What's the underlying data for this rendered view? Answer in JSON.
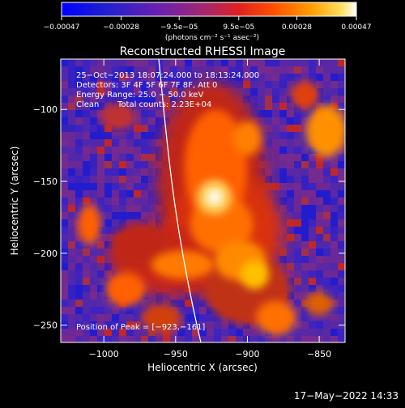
{
  "chart_data": {
    "type": "heatmap",
    "title": "Reconstructed RHESSI Image",
    "xlabel": "Heliocentric X (arcsec)",
    "ylabel": "Heliocentric Y (arcsec)",
    "xlim": [
      -1030,
      -832
    ],
    "ylim": [
      -262,
      -65
    ],
    "xticks": [
      -1000,
      -950,
      -900,
      -850
    ],
    "yticks": [
      -100,
      -150,
      -200,
      -250
    ],
    "xtick_labels": [
      "−1000",
      "−950",
      "−900",
      "−850"
    ],
    "ytick_labels": [
      "−100",
      "−150",
      "−200",
      "−250"
    ],
    "colorbar": {
      "range": [
        -0.00047,
        0.00047
      ],
      "tick_labels": [
        "−0.00047",
        "−0.00028",
        "−9.5e−05",
        "9.5e−05",
        "0.00028",
        "0.00047"
      ],
      "tick_values": [
        -0.00047,
        -0.00028,
        -9.5e-05,
        9.5e-05,
        0.00028,
        0.00047
      ],
      "unit_label": "(photons cm⁻² s⁻¹ asec⁻²)",
      "colors": [
        "#0000ff",
        "#2020d8",
        "#7020b0",
        "#c03050",
        "#ff3000",
        "#ff8000",
        "#ffd000",
        "#ffffff"
      ]
    },
    "annotations": {
      "time_range": "25−Oct−2013 18:07:24.000 to 18:13:24.000",
      "detectors": "Detectors: 3F 4F 5F 6F 7F 8F, Att 0",
      "energy": "Energy Range: 25.0 − 50.0 keV",
      "clean": "Clean",
      "counts": "Total counts: 2.23E+04",
      "peak": "Position of Peak = [−923,−161]"
    },
    "peak_position": [
      -923,
      -161
    ]
  },
  "footer": {
    "date_stamp": "17−May−2022 14:33"
  }
}
